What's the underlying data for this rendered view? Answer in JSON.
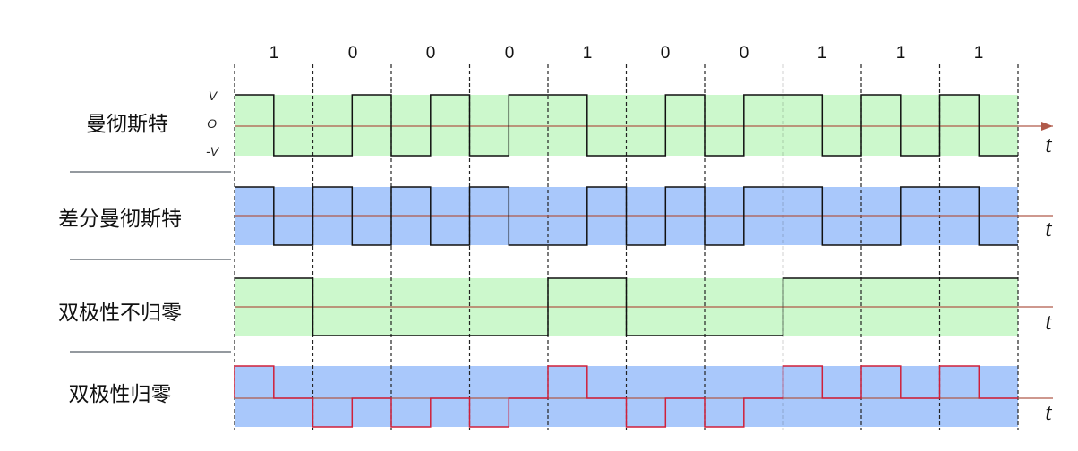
{
  "bits": [
    "1",
    "0",
    "0",
    "0",
    "1",
    "0",
    "0",
    "1",
    "1",
    "1"
  ],
  "level_labels": {
    "high": "V",
    "zero": "O",
    "low": "-V"
  },
  "time_label": "t",
  "colors": {
    "green_band": "#ccf8cc",
    "blue_band": "#a9c8fb",
    "axis": "#b05a4a",
    "signal": "#111111",
    "rz_signal": "#d0203a",
    "divider": "#333333",
    "separator": "#555c66"
  },
  "rows": [
    {
      "id": "manchester",
      "label": "曼彻斯特",
      "band": "green",
      "signal": "manchester",
      "show_levels": true
    },
    {
      "id": "diff_manchester",
      "label": "差分曼彻斯特",
      "band": "blue",
      "signal": "diff_manchester",
      "show_levels": false
    },
    {
      "id": "bipolar_nrz",
      "label": "双极性不归零",
      "band": "green",
      "signal": "nrz",
      "show_levels": false
    },
    {
      "id": "bipolar_rz",
      "label": "双极性归零",
      "band": "blue",
      "signal": "rz",
      "show_levels": false
    }
  ]
}
